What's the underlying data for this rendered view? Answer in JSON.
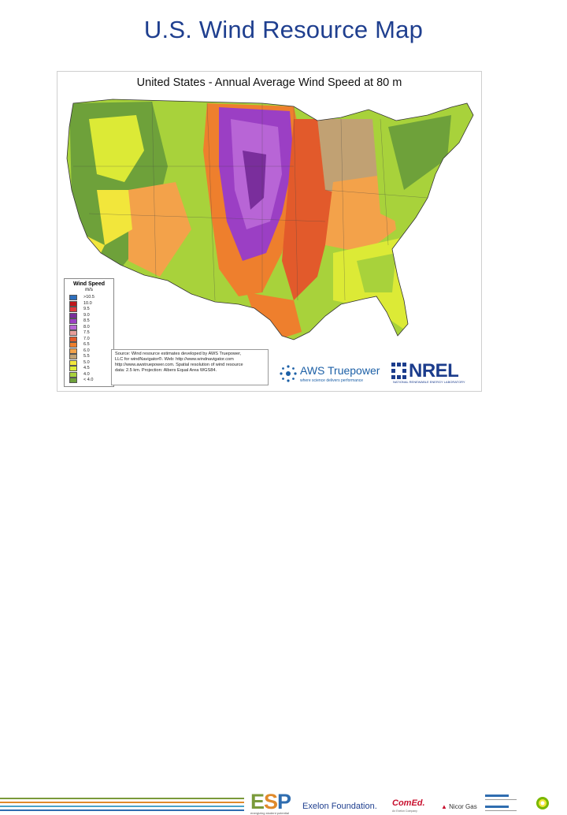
{
  "slide": {
    "title": "U.S. Wind Resource Map"
  },
  "map": {
    "title": "United States - Annual Average Wind Speed at 80 m",
    "legend": {
      "title": "Wind Speed",
      "unit": "m/s",
      "entries": [
        {
          "label": ">10.5",
          "color": "#2e6fbd"
        },
        {
          "label": "10.0",
          "color": "#c0161a"
        },
        {
          "label": "9.5",
          "color": "#e0393d"
        },
        {
          "label": "9.0",
          "color": "#7a2e9c"
        },
        {
          "label": "8.5",
          "color": "#9b3fc4"
        },
        {
          "label": "8.0",
          "color": "#b865d6"
        },
        {
          "label": "7.5",
          "color": "#e79e9a"
        },
        {
          "label": "7.0",
          "color": "#e25a2b"
        },
        {
          "label": "6.5",
          "color": "#ee7f2d"
        },
        {
          "label": "6.0",
          "color": "#f3a24a"
        },
        {
          "label": "5.5",
          "color": "#c1a173"
        },
        {
          "label": "5.0",
          "color": "#f2e63b"
        },
        {
          "label": "4.5",
          "color": "#dcea36"
        },
        {
          "label": "4.0",
          "color": "#a8d23b"
        },
        {
          "label": "< 4.0",
          "color": "#6ea13a"
        }
      ]
    },
    "source": {
      "line1": "Source: Wind resource estimates developed by AWS Truepower,",
      "line2": "LLC for windNavigator®. Web: http://www.windnavigator.com",
      "line3": "http://www.awstruepower.com. Spatial resolution of wind resource",
      "line4": "data: 2.5 km. Projection: Albers Equal Area WGS84."
    },
    "aws": {
      "name": "AWS Truepower",
      "tagline": "where science delivers performance"
    },
    "nrel": {
      "name": "NREL",
      "sub": "NATIONAL RENEWABLE ENERGY LABORATORY"
    }
  },
  "footer": {
    "esp": {
      "name": "ESP",
      "sub": "energizing student potential"
    },
    "exelon": "Exelon Foundation.",
    "comed": "ComEd.",
    "comed_sub": "An Exelon Company",
    "nicor": "Nicor Gas",
    "colors": {
      "stripe1": "#7a9a3a",
      "stripe2": "#e08a2b",
      "stripe3": "#4aa3c8",
      "stripe4": "#2f6db0"
    }
  }
}
